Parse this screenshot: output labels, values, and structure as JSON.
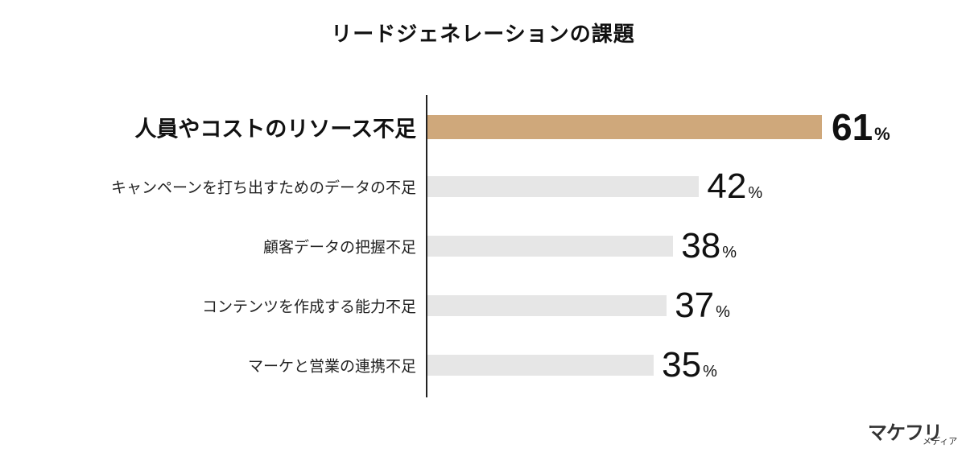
{
  "chart_data": {
    "type": "bar",
    "orientation": "horizontal",
    "title": "リードジェネレーションの課題",
    "categories": [
      "人員やコストのリソース不足",
      "キャンペーンを打ち出すためのデータの不足",
      "顧客データの把握不足",
      "コンテンツを作成する能力不足",
      "マーケと営業の連携不足"
    ],
    "values": [
      61,
      42,
      38,
      37,
      35
    ],
    "unit": "%",
    "xlim": [
      0,
      100
    ],
    "highlight_index": 0,
    "colors": {
      "highlight": "#cfa87b",
      "default": "#e6e6e6"
    },
    "grid": false
  },
  "brand": {
    "logo_main": "マケフリ",
    "logo_sub": "メディア"
  }
}
